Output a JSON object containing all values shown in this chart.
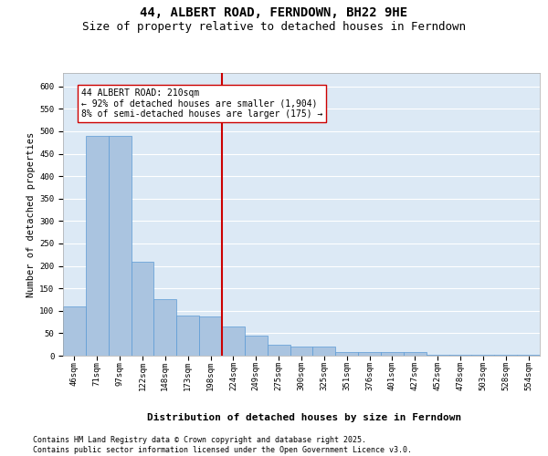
{
  "title": "44, ALBERT ROAD, FERNDOWN, BH22 9HE",
  "subtitle": "Size of property relative to detached houses in Ferndown",
  "xlabel": "Distribution of detached houses by size in Ferndown",
  "ylabel": "Number of detached properties",
  "categories": [
    "46sqm",
    "71sqm",
    "97sqm",
    "122sqm",
    "148sqm",
    "173sqm",
    "198sqm",
    "224sqm",
    "249sqm",
    "275sqm",
    "300sqm",
    "325sqm",
    "351sqm",
    "376sqm",
    "401sqm",
    "427sqm",
    "452sqm",
    "478sqm",
    "503sqm",
    "528sqm",
    "554sqm"
  ],
  "values": [
    110,
    490,
    490,
    210,
    125,
    90,
    88,
    65,
    45,
    25,
    20,
    20,
    8,
    8,
    8,
    8,
    3,
    3,
    3,
    3,
    3
  ],
  "bar_color": "#aac4e0",
  "bar_edge_color": "#5b9bd5",
  "vline_color": "#cc0000",
  "annotation_text": "44 ALBERT ROAD: 210sqm\n← 92% of detached houses are smaller (1,904)\n8% of semi-detached houses are larger (175) →",
  "annotation_box_color": "#cc0000",
  "ylim": [
    0,
    630
  ],
  "yticks": [
    0,
    50,
    100,
    150,
    200,
    250,
    300,
    350,
    400,
    450,
    500,
    550,
    600
  ],
  "background_color": "#dce9f5",
  "grid_color": "#ffffff",
  "footer_text": "Contains HM Land Registry data © Crown copyright and database right 2025.\nContains public sector information licensed under the Open Government Licence v3.0.",
  "title_fontsize": 10,
  "subtitle_fontsize": 9,
  "xlabel_fontsize": 8,
  "ylabel_fontsize": 7.5,
  "tick_fontsize": 6.5,
  "annotation_fontsize": 7,
  "footer_fontsize": 6
}
